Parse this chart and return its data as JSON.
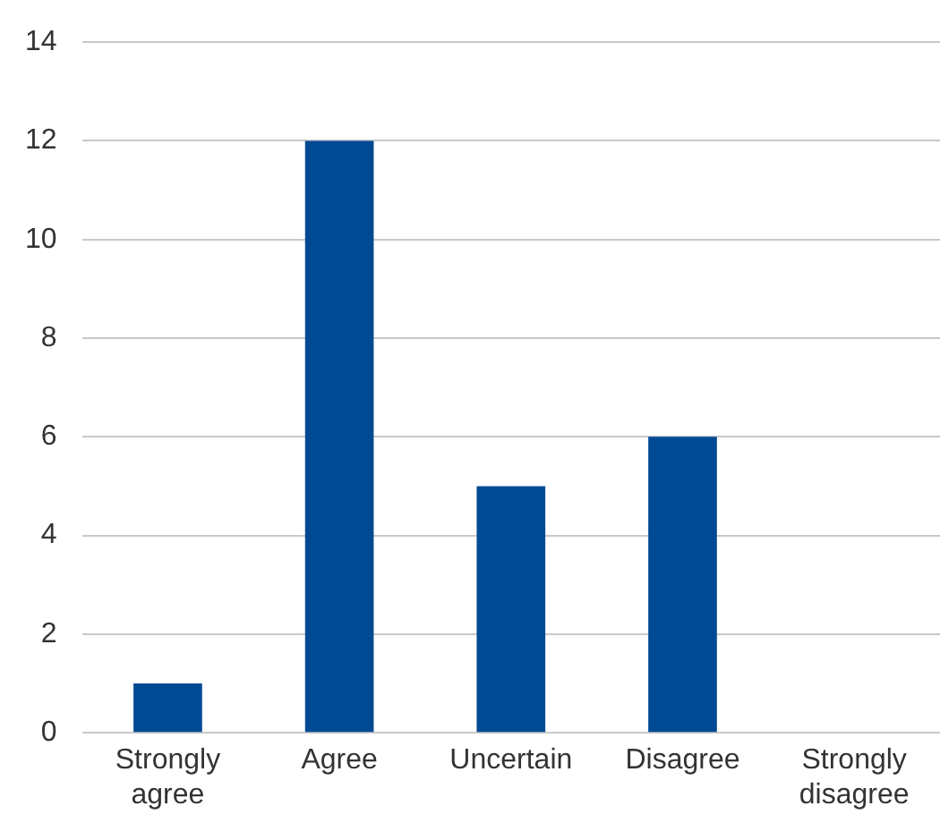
{
  "chart_data": {
    "type": "bar",
    "categories": [
      "Strongly agree",
      "Agree",
      "Uncertain",
      "Disagree",
      "Strongly disagree"
    ],
    "values": [
      1,
      12,
      5,
      6,
      0
    ],
    "color": "#004a93",
    "ylim": [
      0,
      14
    ],
    "yticks": [
      0,
      2,
      4,
      6,
      8,
      10,
      12,
      14
    ],
    "grid": "y",
    "legend": false
  }
}
